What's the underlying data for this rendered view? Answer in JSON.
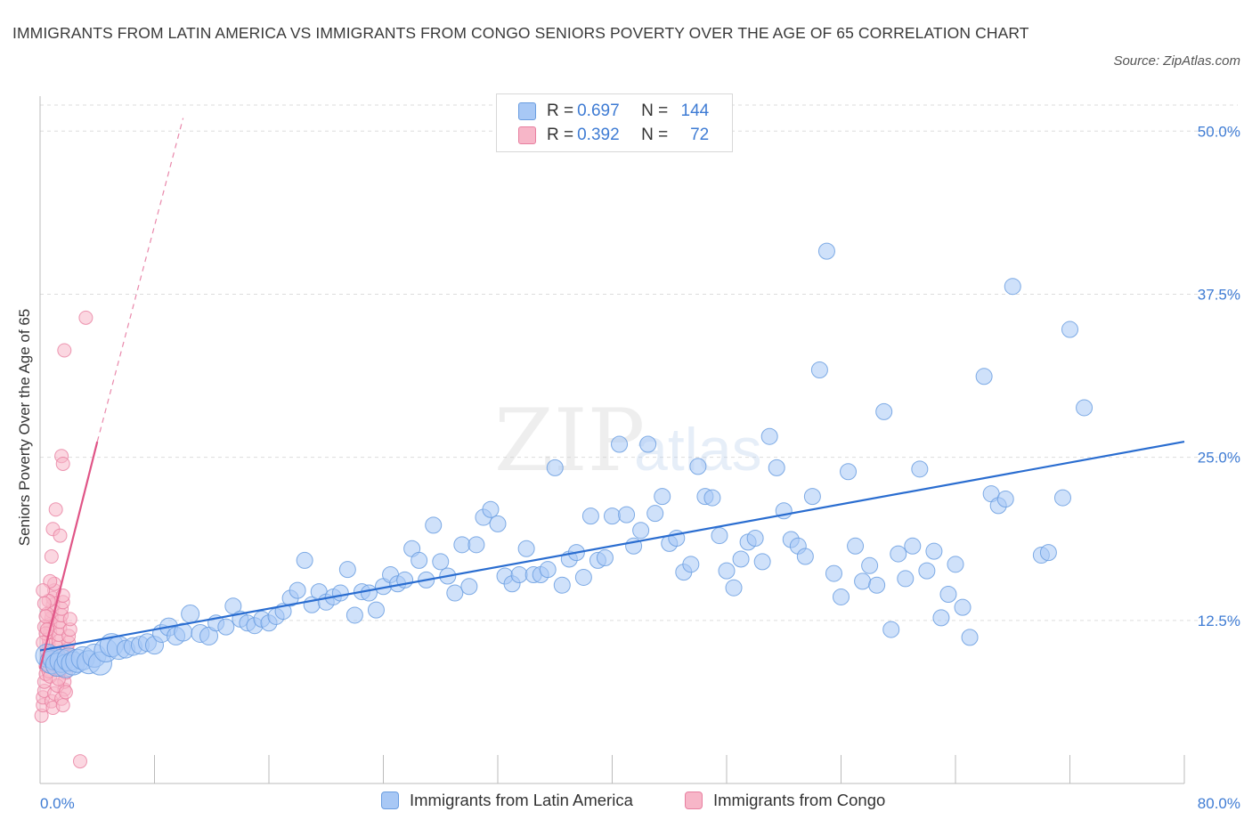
{
  "header": {
    "title": "IMMIGRANTS FROM LATIN AMERICA VS IMMIGRANTS FROM CONGO SENIORS POVERTY OVER THE AGE OF 65 CORRELATION CHART",
    "source": "Source: ZipAtlas.com"
  },
  "watermark": {
    "zip": "ZIP",
    "atlas": "atlas"
  },
  "legend": {
    "rows": [
      {
        "r_label": "R = ",
        "r_value": "0.697",
        "n_label": "N = ",
        "n_value": "144",
        "color": "#a8c8f5"
      },
      {
        "r_label": "R = ",
        "r_value": "0.392",
        "n_label": "N = ",
        "n_value": "72",
        "color": "#f7b6c8"
      }
    ]
  },
  "colors": {
    "blue_fill": "#a8c8f5",
    "blue_stroke": "#6a9de0",
    "blue_line": "#2a6dd0",
    "pink_fill": "#f7b6c8",
    "pink_stroke": "#e87fa0",
    "pink_line": "#e05587",
    "grid": "#dddddd",
    "tick_text": "#3f7cd4"
  },
  "chart_data": {
    "type": "scatter",
    "title": "IMMIGRANTS FROM LATIN AMERICA VS IMMIGRANTS FROM CONGO SENIORS POVERTY OVER THE AGE OF 65 CORRELATION CHART",
    "xlabel": "",
    "ylabel": "Seniors Poverty Over the Age of 65",
    "xlim": [
      0,
      80
    ],
    "ylim": [
      0,
      52
    ],
    "x_tick_labels": [
      "0.0%",
      "80.0%"
    ],
    "y_ticks": [
      12.5,
      25.0,
      37.5,
      50.0
    ],
    "y_tick_labels": [
      "12.5%",
      "25.0%",
      "37.5%",
      "50.0%"
    ],
    "grid": true,
    "legend_position": "bottom-center",
    "series": [
      {
        "name": "Immigrants from Latin America",
        "color": "#a8c8f5",
        "R": 0.697,
        "N": 144,
        "trend": {
          "x": [
            0,
            80
          ],
          "y": [
            10.2,
            26.2
          ],
          "style": "solid"
        },
        "points": [
          [
            0.5,
            9.8
          ],
          [
            0.8,
            9.3
          ],
          [
            1.0,
            9.6
          ],
          [
            1.2,
            9.1
          ],
          [
            1.5,
            9.4
          ],
          [
            1.8,
            9.0
          ],
          [
            2.0,
            9.5
          ],
          [
            2.3,
            9.2
          ],
          [
            2.6,
            9.4
          ],
          [
            3.0,
            9.6
          ],
          [
            3.4,
            9.3
          ],
          [
            3.8,
            9.8
          ],
          [
            4.2,
            9.2
          ],
          [
            4.6,
            10.2
          ],
          [
            5.0,
            10.6
          ],
          [
            5.5,
            10.4
          ],
          [
            6.0,
            10.3
          ],
          [
            6.5,
            10.5
          ],
          [
            7.0,
            10.6
          ],
          [
            7.5,
            10.8
          ],
          [
            8.0,
            10.6
          ],
          [
            8.5,
            11.5
          ],
          [
            9.0,
            12.0
          ],
          [
            9.5,
            11.3
          ],
          [
            10.0,
            11.6
          ],
          [
            10.5,
            13.0
          ],
          [
            11.2,
            11.5
          ],
          [
            11.8,
            11.3
          ],
          [
            12.3,
            12.3
          ],
          [
            13.0,
            12.0
          ],
          [
            13.5,
            13.6
          ],
          [
            14.0,
            12.6
          ],
          [
            14.5,
            12.3
          ],
          [
            15.0,
            12.1
          ],
          [
            15.5,
            12.6
          ],
          [
            16.0,
            12.3
          ],
          [
            16.5,
            12.8
          ],
          [
            17.0,
            13.2
          ],
          [
            17.5,
            14.2
          ],
          [
            18.0,
            14.8
          ],
          [
            18.5,
            17.1
          ],
          [
            19.0,
            13.7
          ],
          [
            19.5,
            14.7
          ],
          [
            20.0,
            13.9
          ],
          [
            20.5,
            14.3
          ],
          [
            21.0,
            14.6
          ],
          [
            21.5,
            16.4
          ],
          [
            22.0,
            12.9
          ],
          [
            22.5,
            14.7
          ],
          [
            23.0,
            14.6
          ],
          [
            23.5,
            13.3
          ],
          [
            24.0,
            15.1
          ],
          [
            24.5,
            16.0
          ],
          [
            25.0,
            15.3
          ],
          [
            25.5,
            15.6
          ],
          [
            26.0,
            18.0
          ],
          [
            26.5,
            17.1
          ],
          [
            27.0,
            15.6
          ],
          [
            27.5,
            19.8
          ],
          [
            28.0,
            17.0
          ],
          [
            28.5,
            15.9
          ],
          [
            29.0,
            14.6
          ],
          [
            29.5,
            18.3
          ],
          [
            30.0,
            15.1
          ],
          [
            30.5,
            18.3
          ],
          [
            31.0,
            20.4
          ],
          [
            31.5,
            21.0
          ],
          [
            32.0,
            19.9
          ],
          [
            32.5,
            15.9
          ],
          [
            33.0,
            15.3
          ],
          [
            33.5,
            16.0
          ],
          [
            34.0,
            18.0
          ],
          [
            34.5,
            16.0
          ],
          [
            35.0,
            16.0
          ],
          [
            35.5,
            16.4
          ],
          [
            36.0,
            24.2
          ],
          [
            36.5,
            15.2
          ],
          [
            37.0,
            17.2
          ],
          [
            37.5,
            17.7
          ],
          [
            38.0,
            15.8
          ],
          [
            38.5,
            20.5
          ],
          [
            39.0,
            17.1
          ],
          [
            39.5,
            17.3
          ],
          [
            40.0,
            20.5
          ],
          [
            40.5,
            26.0
          ],
          [
            41.0,
            20.6
          ],
          [
            41.5,
            18.2
          ],
          [
            42.0,
            19.4
          ],
          [
            42.5,
            26.0
          ],
          [
            43.0,
            20.7
          ],
          [
            43.5,
            22.0
          ],
          [
            44.0,
            18.4
          ],
          [
            44.5,
            18.8
          ],
          [
            45.0,
            16.2
          ],
          [
            45.5,
            16.8
          ],
          [
            46.0,
            24.3
          ],
          [
            46.5,
            22.0
          ],
          [
            47.0,
            21.9
          ],
          [
            47.5,
            19.0
          ],
          [
            48.0,
            16.3
          ],
          [
            48.5,
            15.0
          ],
          [
            49.0,
            17.2
          ],
          [
            49.5,
            18.5
          ],
          [
            50.0,
            18.8
          ],
          [
            50.5,
            17.0
          ],
          [
            51.0,
            26.6
          ],
          [
            51.5,
            24.2
          ],
          [
            52.0,
            20.9
          ],
          [
            52.5,
            18.7
          ],
          [
            53.0,
            18.2
          ],
          [
            53.5,
            17.4
          ],
          [
            54.0,
            22.0
          ],
          [
            54.5,
            31.7
          ],
          [
            55.0,
            40.8
          ],
          [
            55.5,
            16.1
          ],
          [
            56.0,
            14.3
          ],
          [
            56.5,
            23.9
          ],
          [
            57.0,
            18.2
          ],
          [
            57.5,
            15.5
          ],
          [
            58.0,
            16.7
          ],
          [
            58.5,
            15.2
          ],
          [
            59.0,
            28.5
          ],
          [
            59.5,
            11.8
          ],
          [
            60.0,
            17.6
          ],
          [
            60.5,
            15.7
          ],
          [
            61.0,
            18.2
          ],
          [
            61.5,
            24.1
          ],
          [
            62.0,
            16.3
          ],
          [
            62.5,
            17.8
          ],
          [
            63.0,
            12.7
          ],
          [
            63.5,
            14.5
          ],
          [
            64.0,
            16.8
          ],
          [
            64.5,
            13.5
          ],
          [
            65.0,
            11.2
          ],
          [
            66.0,
            31.2
          ],
          [
            66.5,
            22.2
          ],
          [
            67.0,
            21.3
          ],
          [
            67.5,
            21.8
          ],
          [
            68.0,
            38.1
          ],
          [
            70.0,
            17.5
          ],
          [
            70.5,
            17.7
          ],
          [
            71.5,
            21.9
          ],
          [
            72.0,
            34.8
          ],
          [
            73.0,
            28.8
          ]
        ]
      },
      {
        "name": "Immigrants from Congo",
        "color": "#f7b6c8",
        "R": 0.392,
        "N": 72,
        "trend": {
          "x": [
            0,
            4.0
          ],
          "y": [
            8.8,
            26.2
          ],
          "style": "solid",
          "extension": {
            "x": [
              4.0,
              10.0
            ],
            "y": [
              26.2,
              51.0
            ],
            "style": "dashed"
          }
        },
        "points": [
          [
            0.1,
            5.2
          ],
          [
            0.2,
            6.0
          ],
          [
            0.2,
            6.6
          ],
          [
            0.3,
            7.1
          ],
          [
            0.3,
            7.8
          ],
          [
            0.4,
            8.4
          ],
          [
            0.4,
            9.0
          ],
          [
            0.5,
            9.6
          ],
          [
            0.5,
            10.1
          ],
          [
            0.6,
            10.6
          ],
          [
            0.6,
            11.1
          ],
          [
            0.7,
            11.6
          ],
          [
            0.7,
            12.2
          ],
          [
            0.8,
            12.7
          ],
          [
            0.8,
            13.2
          ],
          [
            0.9,
            13.7
          ],
          [
            0.9,
            14.2
          ],
          [
            1.0,
            14.8
          ],
          [
            1.0,
            15.3
          ],
          [
            1.1,
            8.8
          ],
          [
            1.1,
            9.3
          ],
          [
            1.2,
            9.8
          ],
          [
            1.2,
            10.4
          ],
          [
            1.3,
            10.9
          ],
          [
            1.3,
            11.4
          ],
          [
            1.4,
            11.9
          ],
          [
            1.4,
            12.4
          ],
          [
            1.5,
            12.9
          ],
          [
            1.5,
            13.4
          ],
          [
            1.6,
            13.9
          ],
          [
            1.6,
            14.4
          ],
          [
            1.7,
            7.2
          ],
          [
            1.7,
            7.8
          ],
          [
            1.8,
            8.5
          ],
          [
            1.8,
            9.1
          ],
          [
            1.9,
            9.7
          ],
          [
            1.9,
            10.3
          ],
          [
            2.0,
            10.8
          ],
          [
            2.0,
            11.3
          ],
          [
            2.1,
            11.8
          ],
          [
            2.1,
            12.6
          ],
          [
            0.3,
            12.0
          ],
          [
            0.4,
            11.5
          ],
          [
            0.5,
            13.0
          ],
          [
            0.6,
            14.0
          ],
          [
            0.7,
            15.5
          ],
          [
            0.8,
            17.4
          ],
          [
            0.9,
            19.5
          ],
          [
            1.1,
            21.0
          ],
          [
            1.4,
            19.0
          ],
          [
            1.5,
            25.1
          ],
          [
            1.6,
            24.5
          ],
          [
            3.2,
            35.7
          ],
          [
            1.7,
            33.2
          ],
          [
            0.5,
            9.0
          ],
          [
            0.6,
            8.6
          ],
          [
            0.7,
            8.2
          ],
          [
            0.8,
            6.3
          ],
          [
            0.9,
            5.8
          ],
          [
            1.0,
            6.9
          ],
          [
            1.2,
            7.5
          ],
          [
            1.3,
            8.0
          ],
          [
            1.4,
            8.7
          ],
          [
            1.5,
            6.5
          ],
          [
            1.6,
            6.0
          ],
          [
            1.8,
            7.0
          ],
          [
            0.2,
            14.8
          ],
          [
            0.3,
            13.8
          ],
          [
            0.4,
            12.8
          ],
          [
            0.5,
            11.8
          ],
          [
            0.2,
            10.8
          ],
          [
            2.8,
            1.7
          ]
        ]
      }
    ]
  }
}
